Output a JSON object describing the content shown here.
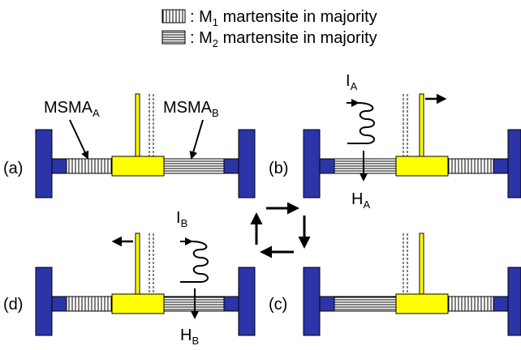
{
  "legend": {
    "m1": {
      "prefix": ": M",
      "sub": "1",
      "suffix": " martensite in majority"
    },
    "m2": {
      "prefix": ": M",
      "sub": "2",
      "suffix": " martensite in majority"
    }
  },
  "panels": {
    "a": {
      "label": "(a)",
      "msma_a": {
        "main": "MSMA",
        "sub": "A"
      },
      "msma_b": {
        "main": "MSMA",
        "sub": "B"
      }
    },
    "b": {
      "label": "(b)",
      "current": {
        "main": "I",
        "sub": "A"
      },
      "field": {
        "main": "H",
        "sub": "A"
      }
    },
    "c": {
      "label": "(c)"
    },
    "d": {
      "label": "(d)",
      "current": {
        "main": "I",
        "sub": "B"
      },
      "field": {
        "main": "H",
        "sub": "B"
      }
    }
  },
  "colors": {
    "frame": "#2b35a8",
    "slider": "#ffff00",
    "outline": "#000000"
  }
}
